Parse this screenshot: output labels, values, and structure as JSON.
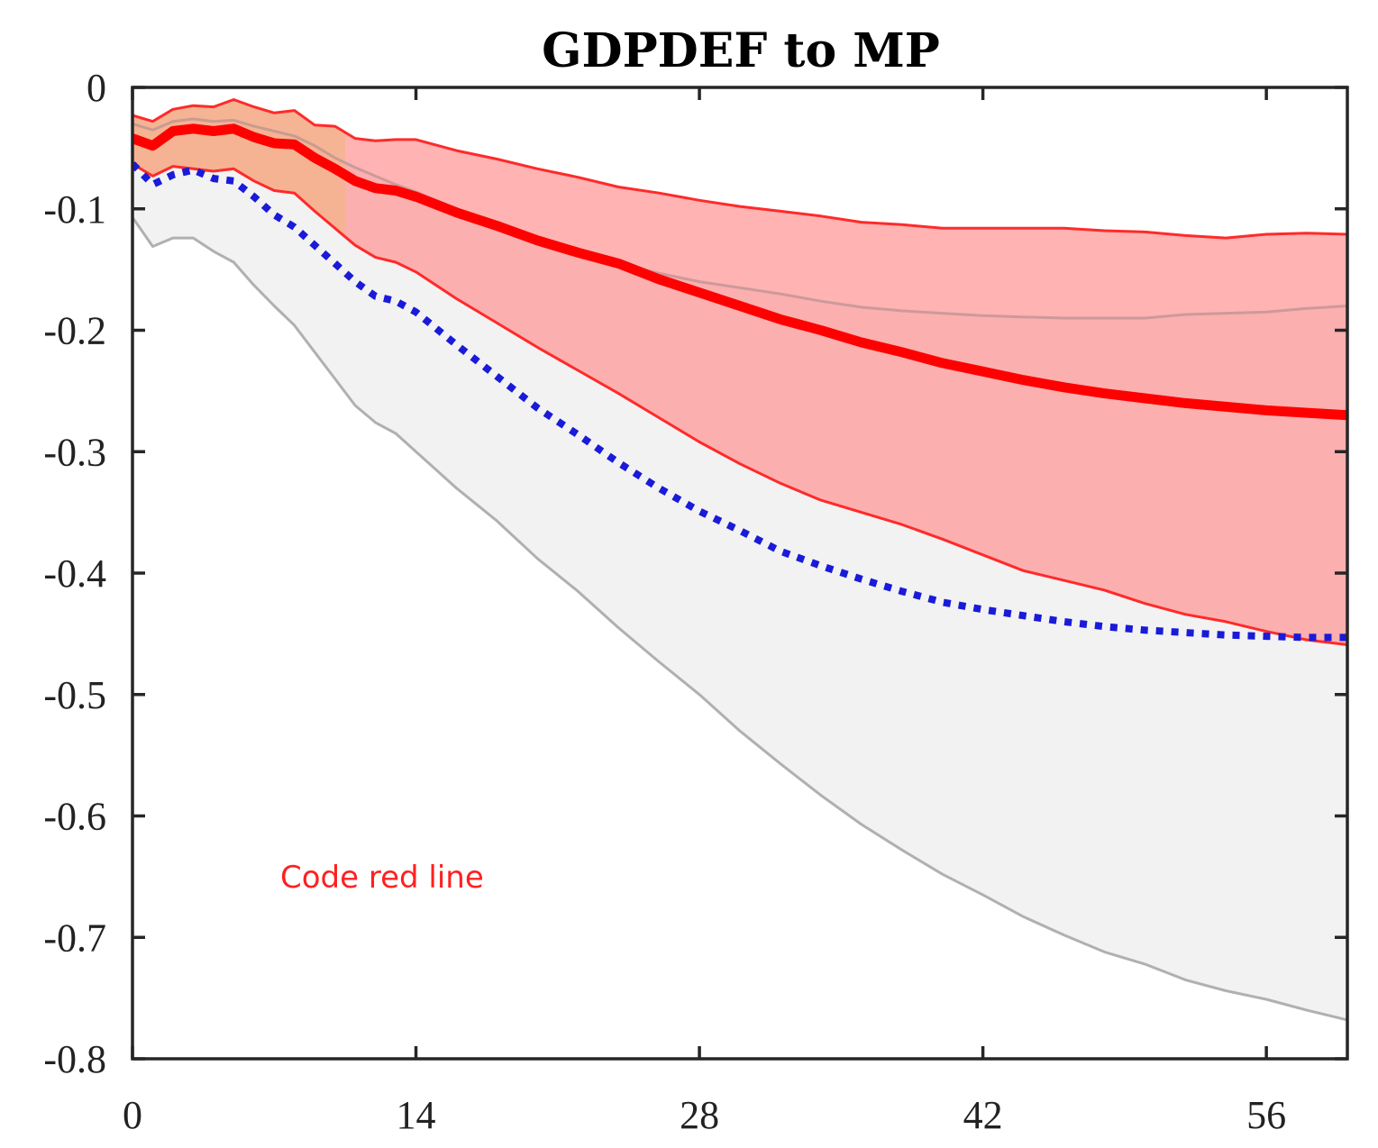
{
  "chart_data": {
    "type": "line",
    "title": "GDPDEF to MP",
    "xlabel": "",
    "ylabel": "",
    "xlim": [
      0,
      60
    ],
    "ylim": [
      -0.8,
      0
    ],
    "x_ticks": [
      0,
      14,
      28,
      42,
      56
    ],
    "x_tick_labels": [
      "0",
      "14",
      "28",
      "42",
      "56"
    ],
    "y_ticks": [
      0,
      -0.1,
      -0.2,
      -0.3,
      -0.4,
      -0.5,
      -0.6,
      -0.7,
      -0.8
    ],
    "y_tick_labels": [
      "0",
      "-0.1",
      "-0.2",
      "-0.3",
      "-0.4",
      "-0.5",
      "-0.6",
      "-0.7",
      "-0.8"
    ],
    "grid": false,
    "annotation": {
      "text": "Code red line",
      "x": 7.3,
      "y": -0.65,
      "color": "#ff2020"
    },
    "series": [
      {
        "style": "solid-thick",
        "color": "#ff0000",
        "x": [
          0,
          1,
          2,
          3,
          4,
          5,
          6,
          7,
          8,
          9,
          10,
          11,
          12,
          13,
          14,
          16,
          18,
          20,
          22,
          24,
          26,
          28,
          30,
          32,
          34,
          36,
          38,
          40,
          42,
          44,
          46,
          48,
          50,
          52,
          54,
          56,
          58,
          60
        ],
        "y": [
          -0.042,
          -0.048,
          -0.036,
          -0.034,
          -0.036,
          -0.034,
          -0.041,
          -0.046,
          -0.047,
          -0.058,
          -0.067,
          -0.077,
          -0.083,
          -0.085,
          -0.09,
          -0.103,
          -0.114,
          -0.126,
          -0.136,
          -0.145,
          -0.158,
          -0.169,
          -0.18,
          -0.191,
          -0.2,
          -0.21,
          -0.218,
          -0.227,
          -0.234,
          -0.241,
          -0.247,
          -0.252,
          -0.256,
          -0.26,
          -0.263,
          -0.266,
          -0.268,
          -0.27
        ]
      },
      {
        "style": "solid-thin",
        "color": "#ff2a2a",
        "x": [
          0,
          1,
          2,
          3,
          4,
          5,
          6,
          7,
          8,
          9,
          10,
          11,
          12,
          13,
          14,
          16,
          18,
          20,
          22,
          24,
          26,
          28,
          30,
          32,
          34,
          36,
          38,
          40,
          42,
          44,
          46,
          48,
          50,
          52,
          54,
          56,
          58,
          60
        ],
        "y": [
          -0.023,
          -0.028,
          -0.018,
          -0.015,
          -0.016,
          -0.01,
          -0.016,
          -0.021,
          -0.019,
          -0.031,
          -0.032,
          -0.042,
          -0.044,
          -0.043,
          -0.043,
          -0.052,
          -0.059,
          -0.067,
          -0.074,
          -0.082,
          -0.087,
          -0.093,
          -0.098,
          -0.102,
          -0.106,
          -0.111,
          -0.113,
          -0.116,
          -0.116,
          -0.116,
          -0.116,
          -0.118,
          -0.119,
          -0.122,
          -0.124,
          -0.121,
          -0.12,
          -0.121
        ]
      },
      {
        "style": "solid-thin",
        "color": "#ff2a2a",
        "x": [
          0,
          1,
          2,
          3,
          4,
          5,
          6,
          7,
          8,
          9,
          10,
          11,
          12,
          13,
          14,
          16,
          18,
          20,
          22,
          24,
          26,
          28,
          30,
          32,
          34,
          36,
          38,
          40,
          42,
          44,
          46,
          48,
          50,
          52,
          54,
          56,
          58,
          60
        ],
        "y": [
          -0.063,
          -0.073,
          -0.065,
          -0.067,
          -0.069,
          -0.067,
          -0.077,
          -0.085,
          -0.087,
          -0.102,
          -0.116,
          -0.13,
          -0.14,
          -0.144,
          -0.152,
          -0.174,
          -0.194,
          -0.214,
          -0.233,
          -0.252,
          -0.272,
          -0.292,
          -0.31,
          -0.326,
          -0.34,
          -0.35,
          -0.36,
          -0.372,
          -0.385,
          -0.398,
          -0.406,
          -0.414,
          -0.425,
          -0.434,
          -0.44,
          -0.448,
          -0.455,
          -0.459
        ]
      },
      {
        "style": "dotted",
        "color": "#1a1ad9",
        "x": [
          0,
          1,
          2,
          3,
          4,
          5,
          6,
          7,
          8,
          9,
          10,
          11,
          12,
          13,
          14,
          16,
          18,
          20,
          22,
          24,
          26,
          28,
          30,
          32,
          34,
          36,
          38,
          40,
          42,
          44,
          46,
          48,
          50,
          52,
          54,
          56,
          58,
          60
        ],
        "y": [
          -0.063,
          -0.08,
          -0.072,
          -0.068,
          -0.075,
          -0.077,
          -0.09,
          -0.105,
          -0.115,
          -0.13,
          -0.145,
          -0.16,
          -0.172,
          -0.176,
          -0.185,
          -0.212,
          -0.238,
          -0.264,
          -0.286,
          -0.309,
          -0.33,
          -0.349,
          -0.365,
          -0.382,
          -0.394,
          -0.405,
          -0.415,
          -0.424,
          -0.43,
          -0.435,
          -0.44,
          -0.444,
          -0.447,
          -0.449,
          -0.451,
          -0.452,
          -0.453,
          -0.453
        ]
      },
      {
        "style": "solid-thin",
        "color": "#b0b0b0",
        "x": [
          0,
          1,
          2,
          3,
          4,
          5,
          6,
          7,
          8,
          9,
          10,
          11,
          12,
          13,
          14,
          16,
          18,
          20,
          22,
          24,
          26,
          28,
          30,
          32,
          34,
          36,
          38,
          40,
          42,
          44,
          46,
          48,
          50,
          52,
          54,
          56,
          58,
          60
        ],
        "y": [
          -0.107,
          -0.131,
          -0.124,
          -0.124,
          -0.135,
          -0.144,
          -0.163,
          -0.18,
          -0.196,
          -0.218,
          -0.24,
          -0.262,
          -0.276,
          -0.285,
          -0.3,
          -0.33,
          -0.357,
          -0.388,
          -0.415,
          -0.445,
          -0.473,
          -0.5,
          -0.53,
          -0.557,
          -0.583,
          -0.607,
          -0.628,
          -0.648,
          -0.665,
          -0.683,
          -0.698,
          -0.712,
          -0.722,
          -0.735,
          -0.744,
          -0.751,
          -0.76,
          -0.768
        ]
      },
      {
        "style": "solid-thin",
        "color": "#b89090",
        "x": [
          0,
          1,
          2,
          3,
          4,
          5,
          6,
          7,
          8,
          9,
          10,
          11,
          12,
          13,
          14,
          16,
          18,
          20,
          22,
          24,
          26,
          28,
          30,
          32,
          34,
          36,
          38,
          40,
          42,
          44,
          46,
          48,
          50,
          52,
          54,
          56,
          58,
          60
        ],
        "y": [
          -0.03,
          -0.035,
          -0.028,
          -0.026,
          -0.028,
          -0.027,
          -0.032,
          -0.036,
          -0.04,
          -0.048,
          -0.058,
          -0.066,
          -0.073,
          -0.08,
          -0.086,
          -0.1,
          -0.113,
          -0.124,
          -0.134,
          -0.145,
          -0.153,
          -0.16,
          -0.165,
          -0.17,
          -0.176,
          -0.181,
          -0.184,
          -0.186,
          -0.188,
          -0.189,
          -0.19,
          -0.19,
          -0.19,
          -0.187,
          -0.186,
          -0.185,
          -0.182,
          -0.18
        ]
      }
    ],
    "bands": [
      {
        "color": "#f2f2f2",
        "upper_series": 5,
        "lower_series": 4
      },
      {
        "color": "#ff8a8a",
        "upper_series": 1,
        "lower_series": 2
      }
    ],
    "band_highlight": {
      "from_x": 0,
      "to_x": 10.5,
      "color": "#f3b48e"
    }
  }
}
